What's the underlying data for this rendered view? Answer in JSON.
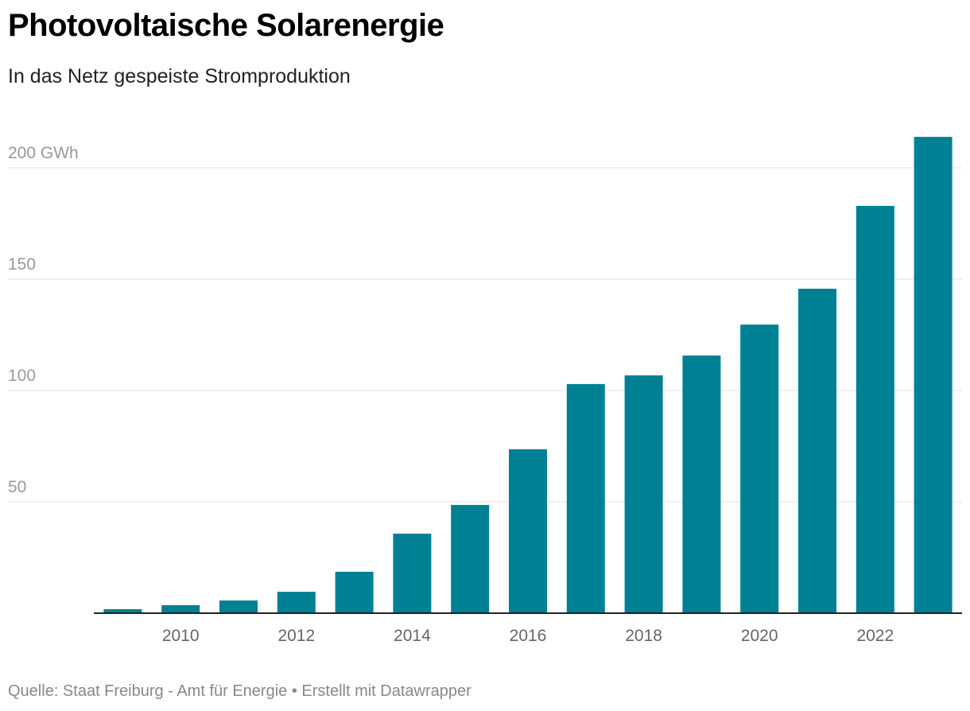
{
  "title": "Photovoltaische Solarenergie",
  "subtitle": "In das Netz gespeiste Stromproduktion",
  "source": "Quelle: Staat Freiburg - Amt für Energie • Erstellt mit Datawrapper",
  "colors": {
    "bar": "#008193",
    "grid": "#e0e0e0",
    "axis": "#222222"
  },
  "chart_data": {
    "type": "bar",
    "title": "Photovoltaische Solarenergie",
    "subtitle": "In das Netz gespeiste Stromproduktion",
    "xlabel": "",
    "ylabel": "GWh",
    "ylim": [
      0,
      220
    ],
    "grid": true,
    "categories": [
      2009,
      2010,
      2011,
      2012,
      2013,
      2014,
      2015,
      2016,
      2017,
      2018,
      2019,
      2020,
      2021,
      2022,
      2023
    ],
    "values": [
      1.8,
      3.6,
      5.7,
      9.6,
      18.6,
      35.7,
      48.6,
      73.6,
      102.9,
      106.8,
      115.7,
      129.6,
      145.7,
      182.9,
      213.9
    ],
    "yticks": [
      {
        "value": 50,
        "label": "50"
      },
      {
        "value": 100,
        "label": "100"
      },
      {
        "value": 150,
        "label": "150"
      },
      {
        "value": 200,
        "label": "200 GWh"
      }
    ],
    "xticks": [
      {
        "value": 2010,
        "label": "2010"
      },
      {
        "value": 2012,
        "label": "2012"
      },
      {
        "value": 2014,
        "label": "2014"
      },
      {
        "value": 2016,
        "label": "2016"
      },
      {
        "value": 2018,
        "label": "2018"
      },
      {
        "value": 2020,
        "label": "2020"
      },
      {
        "value": 2022,
        "label": "2022"
      }
    ]
  }
}
